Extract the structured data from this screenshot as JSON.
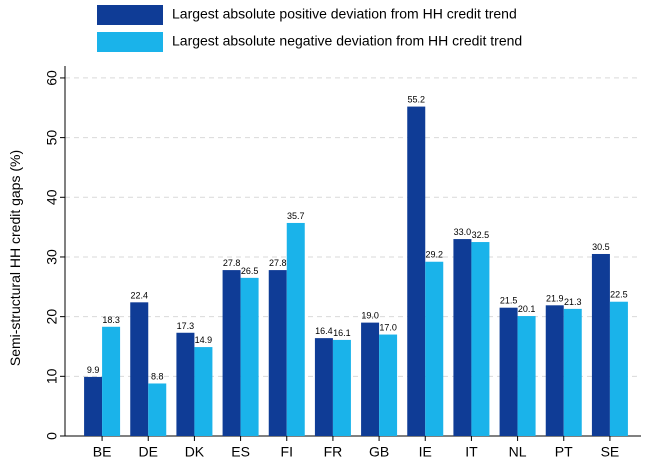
{
  "chart_data": {
    "type": "bar",
    "y_label": "Semi-structural HH credit gaps (%)",
    "categories": [
      "BE",
      "DE",
      "DK",
      "ES",
      "FI",
      "FR",
      "GB",
      "IE",
      "IT",
      "NL",
      "PT",
      "SE"
    ],
    "series": [
      {
        "name": "Largest absolute positive deviation from HH credit trend",
        "color": "#0f3c96",
        "values": [
          9.9,
          22.4,
          17.3,
          27.8,
          27.8,
          16.4,
          19.0,
          55.2,
          33.0,
          21.5,
          21.9,
          30.5
        ],
        "value_labels": [
          "9.9",
          "22.4",
          "17.3",
          "27.8",
          "27.8",
          "16.4",
          "19.0",
          "55.2",
          "33.0",
          "21.5",
          "21.9",
          "30.5"
        ]
      },
      {
        "name": "Largest absolute negative deviation from HH credit trend",
        "color": "#1ab3ea",
        "values": [
          18.3,
          8.8,
          14.9,
          26.5,
          35.7,
          16.1,
          17.0,
          29.2,
          32.5,
          20.1,
          21.3,
          22.5
        ],
        "value_labels": [
          "18.3",
          "8.8",
          "14.9",
          "26.5",
          "35.7",
          "16.1",
          "17.0",
          "29.2",
          "32.5",
          "20.1",
          "21.3",
          "22.5"
        ]
      }
    ],
    "ylim": [
      0,
      62
    ],
    "yticks": [
      0,
      10,
      20,
      30,
      40,
      50,
      60
    ],
    "grid": true
  }
}
